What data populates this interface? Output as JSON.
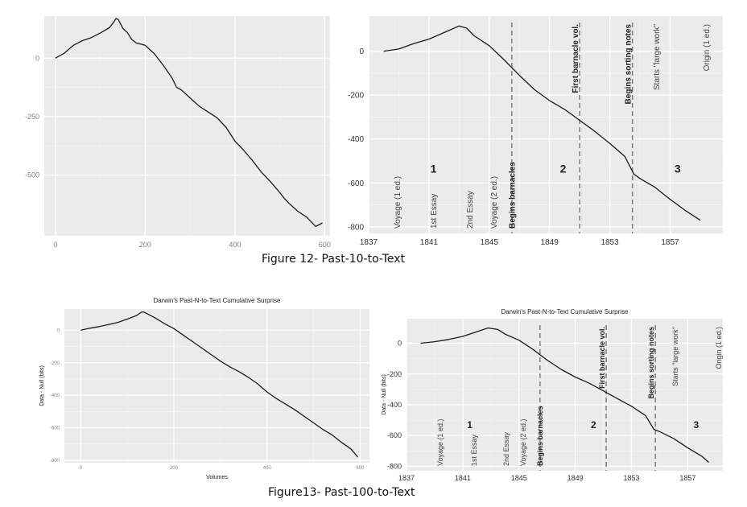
{
  "captions": {
    "fig12": "Figure 12- Past-10-to-Text",
    "fig13": "Figure13- Past-100-to-Text"
  },
  "colors": {
    "panel_bg": "#ebebeb",
    "grid": "#ffffff",
    "line": "#1a1a1a",
    "tick_text": "#7f7f7f",
    "label_text": "#555555"
  },
  "chart_data": [
    {
      "id": "fig12-left",
      "type": "line",
      "title": "",
      "xlabel": "",
      "ylabel": "",
      "xlim": [
        -25,
        612
      ],
      "ylim": [
        -760,
        180
      ],
      "x_ticks": [
        0,
        200,
        400,
        600
      ],
      "x_tick_labels": [
        "0",
        "200",
        "400",
        "600"
      ],
      "y_ticks": [
        0,
        -250,
        -500
      ],
      "y_tick_labels": [
        "0",
        "-250",
        "-500"
      ],
      "grid": true,
      "series": [
        {
          "values": [
            [
              0,
              0
            ],
            [
              20,
              22
            ],
            [
              40,
              55
            ],
            [
              60,
              75
            ],
            [
              80,
              88
            ],
            [
              100,
              108
            ],
            [
              120,
              130
            ],
            [
              130,
              155
            ],
            [
              135,
              170
            ],
            [
              140,
              165
            ],
            [
              150,
              128
            ],
            [
              160,
              110
            ],
            [
              170,
              80
            ],
            [
              180,
              65
            ],
            [
              200,
              55
            ],
            [
              220,
              20
            ],
            [
              240,
              -30
            ],
            [
              260,
              -85
            ],
            [
              270,
              -125
            ],
            [
              280,
              -135
            ],
            [
              300,
              -170
            ],
            [
              320,
              -205
            ],
            [
              340,
              -230
            ],
            [
              360,
              -255
            ],
            [
              380,
              -295
            ],
            [
              400,
              -355
            ],
            [
              420,
              -395
            ],
            [
              440,
              -440
            ],
            [
              460,
              -490
            ],
            [
              480,
              -530
            ],
            [
              500,
              -575
            ],
            [
              510,
              -600
            ],
            [
              520,
              -620
            ],
            [
              540,
              -655
            ],
            [
              560,
              -680
            ],
            [
              580,
              -720
            ],
            [
              595,
              -705
            ]
          ]
        }
      ]
    },
    {
      "id": "fig12-right",
      "type": "line",
      "title": "",
      "xlabel": "",
      "ylabel": "",
      "xlim": [
        1837,
        1860.5
      ],
      "ylim": [
        -830,
        160
      ],
      "x_ticks": [
        1837,
        1841,
        1845,
        1849,
        1853,
        1857
      ],
      "x_tick_labels": [
        "1837",
        "1841",
        "1845",
        "1849",
        "1853",
        "1857"
      ],
      "y_ticks": [
        0,
        -200,
        -400,
        -600,
        -800
      ],
      "y_tick_labels": [
        "0",
        "-200",
        "-400",
        "-600",
        "-800"
      ],
      "grid": true,
      "events": [
        {
          "x": 1838.9,
          "label": "Voyage (1 ed.)",
          "line": false,
          "bold": false
        },
        {
          "x": 1841.3,
          "label": "1st Essay",
          "line": false,
          "bold": false
        },
        {
          "x": 1843.7,
          "label": "2nd Essay",
          "line": false,
          "bold": false
        },
        {
          "x": 1845.3,
          "label": "Voyage (2 ed.)",
          "line": false,
          "bold": false
        },
        {
          "x": 1846.5,
          "label": "Begins barnacles",
          "line": true,
          "bold": true
        },
        {
          "x": 1851.0,
          "label": "First barnacle vol.",
          "line": true,
          "bold": true
        },
        {
          "x": 1854.5,
          "label": "Begins sorting notes",
          "line": true,
          "bold": true
        },
        {
          "x": 1856.1,
          "label": "Starts \"large work\"",
          "line": false,
          "bold": false
        },
        {
          "x": 1859.4,
          "label": "Origin (1 ed.)",
          "line": false,
          "bold": false
        }
      ],
      "period_labels": [
        {
          "x": 1841.3,
          "label": "1"
        },
        {
          "x": 1849.9,
          "label": "2"
        },
        {
          "x": 1857.5,
          "label": "3"
        }
      ],
      "series": [
        {
          "values": [
            [
              1838,
              0
            ],
            [
              1839,
              10
            ],
            [
              1840,
              35
            ],
            [
              1841,
              55
            ],
            [
              1842,
              85
            ],
            [
              1843,
              115
            ],
            [
              1843.5,
              105
            ],
            [
              1844,
              70
            ],
            [
              1845,
              25
            ],
            [
              1846,
              -40
            ],
            [
              1847,
              -110
            ],
            [
              1848,
              -175
            ],
            [
              1849,
              -225
            ],
            [
              1850,
              -265
            ],
            [
              1851,
              -315
            ],
            [
              1852,
              -365
            ],
            [
              1853,
              -420
            ],
            [
              1854,
              -480
            ],
            [
              1854.6,
              -560
            ],
            [
              1855,
              -580
            ],
            [
              1856,
              -620
            ],
            [
              1857,
              -675
            ],
            [
              1858,
              -725
            ],
            [
              1859,
              -770
            ]
          ]
        }
      ]
    },
    {
      "id": "fig13-left",
      "type": "line",
      "title": "Darwin's Past-N-to-Text Cumulative Surprise",
      "xlabel": "Volumes",
      "ylabel": "Data - Null (bits)",
      "xlim": [
        -35,
        620
      ],
      "ylim": [
        -815,
        130
      ],
      "x_ticks": [
        0,
        200,
        400,
        600
      ],
      "x_tick_labels": [
        "0",
        "200",
        "400",
        "600"
      ],
      "y_ticks": [
        0,
        -200,
        -400,
        -600,
        -800
      ],
      "y_tick_labels": [
        "0",
        "-200",
        "-400",
        "-600",
        "-800"
      ],
      "grid": true,
      "series": [
        {
          "values": [
            [
              0,
              0
            ],
            [
              20,
              12
            ],
            [
              40,
              22
            ],
            [
              60,
              35
            ],
            [
              80,
              48
            ],
            [
              100,
              68
            ],
            [
              120,
              90
            ],
            [
              130,
              110
            ],
            [
              135,
              112
            ],
            [
              140,
              105
            ],
            [
              160,
              75
            ],
            [
              180,
              40
            ],
            [
              200,
              10
            ],
            [
              220,
              -30
            ],
            [
              240,
              -70
            ],
            [
              260,
              -110
            ],
            [
              280,
              -150
            ],
            [
              300,
              -190
            ],
            [
              320,
              -225
            ],
            [
              340,
              -255
            ],
            [
              360,
              -290
            ],
            [
              380,
              -330
            ],
            [
              400,
              -380
            ],
            [
              420,
              -420
            ],
            [
              440,
              -455
            ],
            [
              460,
              -490
            ],
            [
              480,
              -530
            ],
            [
              500,
              -570
            ],
            [
              520,
              -610
            ],
            [
              540,
              -645
            ],
            [
              560,
              -690
            ],
            [
              580,
              -730
            ],
            [
              595,
              -780
            ]
          ]
        }
      ]
    },
    {
      "id": "fig13-right",
      "type": "line",
      "title": "Darwin's Past-N-to-Text Cumulative Surprise",
      "xlabel": "",
      "ylabel": "Data - Null (bits)",
      "xlim": [
        1837,
        1859.5
      ],
      "ylim": [
        -830,
        160
      ],
      "x_ticks": [
        1837,
        1841,
        1845,
        1849,
        1853,
        1857
      ],
      "x_tick_labels": [
        "1837",
        "1841",
        "1845",
        "1849",
        "1853",
        "1857"
      ],
      "y_ticks": [
        0,
        -200,
        -400,
        -600,
        -800
      ],
      "y_tick_labels": [
        "0",
        "-200",
        "-400",
        "-600",
        "-800"
      ],
      "grid": true,
      "events": [
        {
          "x": 1839.4,
          "label": "Voyage (1 ed.)",
          "line": false,
          "bold": false
        },
        {
          "x": 1841.8,
          "label": "1st Essay",
          "line": false,
          "bold": false
        },
        {
          "x": 1844.1,
          "label": "2nd Essay",
          "line": false,
          "bold": false
        },
        {
          "x": 1845.3,
          "label": "Voyage (2 ed.)",
          "line": false,
          "bold": false
        },
        {
          "x": 1846.5,
          "label": "Begins barnacles",
          "line": true,
          "bold": true
        },
        {
          "x": 1851.2,
          "label": "First barnacle vol.",
          "line": true,
          "bold": true
        },
        {
          "x": 1854.7,
          "label": "Begins sorting notes",
          "line": true,
          "bold": true
        },
        {
          "x": 1856.1,
          "label": "Starts \"large work\"",
          "line": false,
          "bold": false
        },
        {
          "x": 1859.2,
          "label": "Origin (1 ed.)",
          "line": false,
          "bold": false
        }
      ],
      "period_labels": [
        {
          "x": 1841.5,
          "label": "1"
        },
        {
          "x": 1850.3,
          "label": "2"
        },
        {
          "x": 1857.6,
          "label": "3"
        }
      ],
      "series": [
        {
          "values": [
            [
              1838,
              0
            ],
            [
              1839,
              10
            ],
            [
              1840,
              25
            ],
            [
              1841,
              45
            ],
            [
              1842,
              75
            ],
            [
              1842.8,
              100
            ],
            [
              1843.5,
              90
            ],
            [
              1844,
              60
            ],
            [
              1845,
              20
            ],
            [
              1846,
              -40
            ],
            [
              1847,
              -110
            ],
            [
              1848,
              -170
            ],
            [
              1849,
              -220
            ],
            [
              1850,
              -260
            ],
            [
              1851,
              -310
            ],
            [
              1852,
              -360
            ],
            [
              1853,
              -410
            ],
            [
              1854,
              -470
            ],
            [
              1854.6,
              -560
            ],
            [
              1855,
              -575
            ],
            [
              1856,
              -620
            ],
            [
              1857,
              -680
            ],
            [
              1858,
              -735
            ],
            [
              1858.5,
              -775
            ]
          ]
        }
      ]
    }
  ]
}
